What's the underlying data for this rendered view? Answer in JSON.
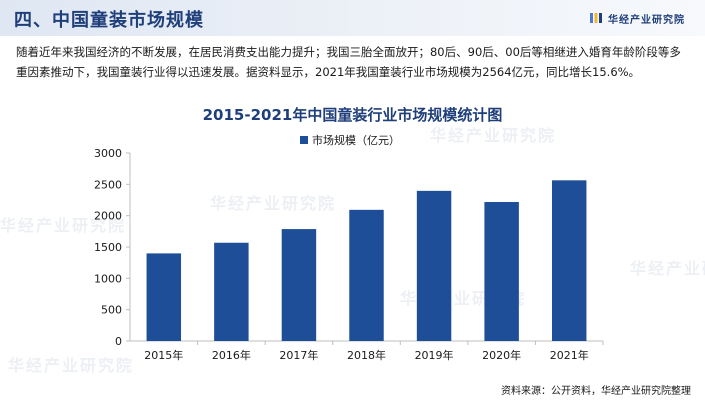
{
  "header": {
    "title": "四、中国童装市场规模",
    "brand": "华经产业研究院"
  },
  "intro": "随着近年来我国经济的不断发展，在居民消费支出能力提升；我国三胎全面放开；80后、90后、00后等相继进入婚育年龄阶段等多重因素推动下，我国童装行业得以迅速发展。据资料显示，2021年我国童装行业市场规模为2564亿元，同比增长15.6%。",
  "watermark": "华经产业研究院",
  "source": "资料来源：公开资料，华经产业研究院整理",
  "colors": {
    "bar": "#1f4e99",
    "title": "#1f3f7a"
  },
  "chart_data": {
    "type": "bar",
    "title": "2015-2021年中国童装行业市场规模统计图",
    "categories": [
      "2015年",
      "2016年",
      "2017年",
      "2018年",
      "2019年",
      "2020年",
      "2021年"
    ],
    "series": [
      {
        "name": "市场规模（亿元）",
        "values": [
          1398,
          1568,
          1786,
          2093,
          2396,
          2218,
          2564
        ]
      }
    ],
    "ylim": [
      0,
      3000
    ],
    "yticks": [
      0,
      500,
      1000,
      1500,
      2000,
      2500,
      3000
    ],
    "grid": false,
    "legend": "top-center"
  }
}
